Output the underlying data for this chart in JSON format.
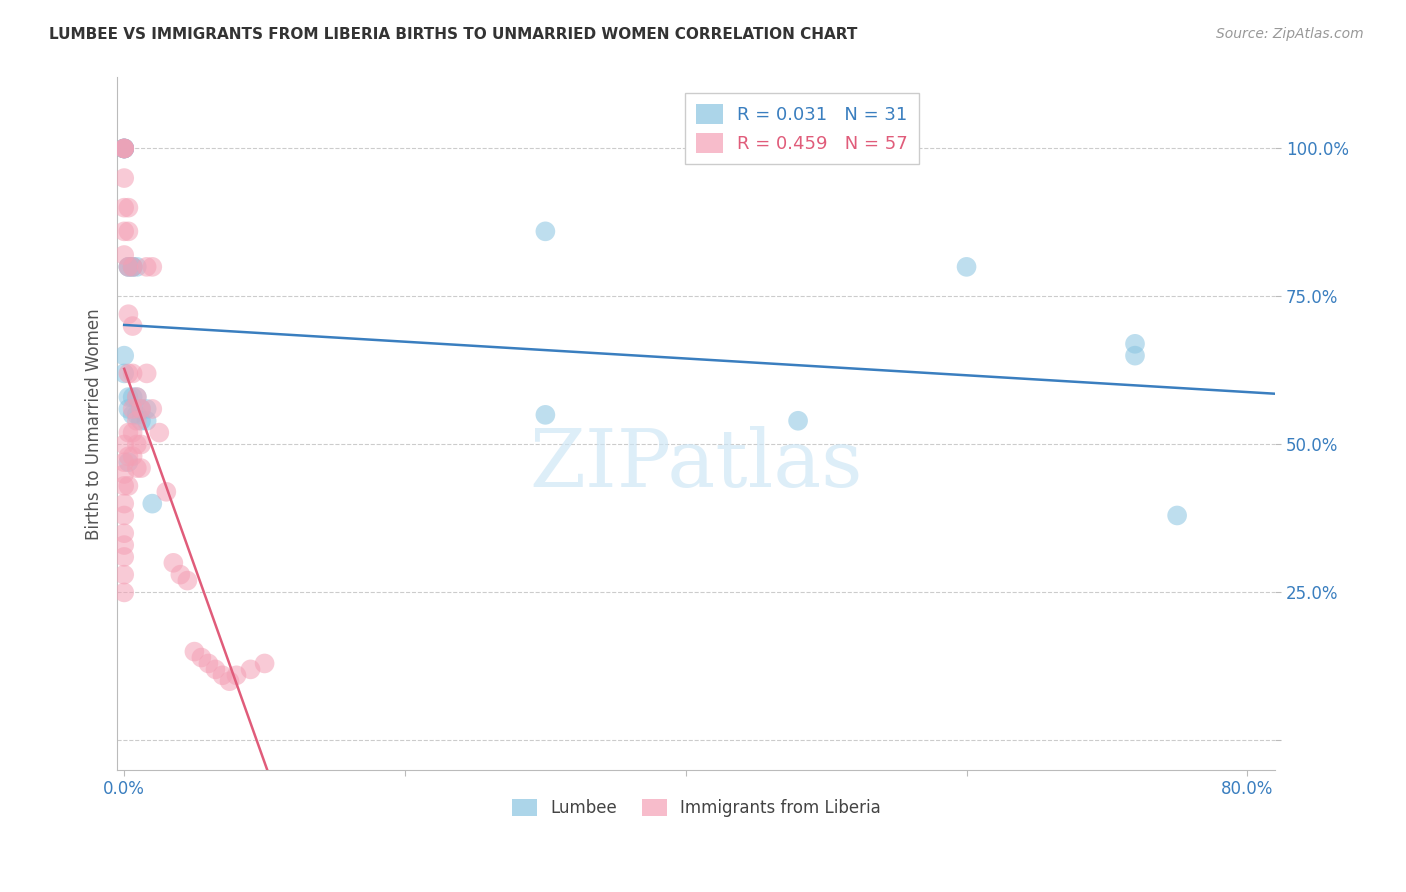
{
  "title": "LUMBEE VS IMMIGRANTS FROM LIBERIA BIRTHS TO UNMARRIED WOMEN CORRELATION CHART",
  "source": "Source: ZipAtlas.com",
  "ylabel": "Births to Unmarried Women",
  "watermark": "ZIPatlas",
  "blue_color": "#89c4e1",
  "pink_color": "#f4a0b5",
  "blue_line_color": "#3a7ebf",
  "pink_line_color": "#e05c7a",
  "background_color": "#ffffff",
  "grid_color": "#cccccc",
  "lumbee_x": [
    0.0,
    0.0,
    0.0,
    0.0,
    0.0,
    0.0,
    0.003,
    0.003,
    0.003,
    0.003,
    0.006,
    0.006,
    0.006,
    0.006,
    0.009,
    0.009,
    0.009,
    0.012,
    0.012,
    0.016,
    0.016,
    0.02,
    0.3,
    0.3,
    0.48,
    0.6,
    0.72,
    0.72,
    0.75,
    0.0,
    0.003
  ],
  "lumbee_y": [
    1.0,
    1.0,
    1.0,
    1.0,
    1.0,
    0.65,
    0.8,
    0.8,
    0.58,
    0.56,
    0.8,
    0.8,
    0.58,
    0.55,
    0.8,
    0.58,
    0.55,
    0.56,
    0.54,
    0.56,
    0.54,
    0.4,
    0.55,
    0.86,
    0.54,
    0.8,
    0.67,
    0.65,
    0.38,
    0.62,
    0.47
  ],
  "liberia_x": [
    0.0,
    0.0,
    0.0,
    0.0,
    0.0,
    0.0,
    0.0,
    0.0,
    0.0,
    0.0,
    0.0,
    0.0,
    0.0,
    0.0,
    0.0,
    0.0,
    0.0,
    0.0,
    0.003,
    0.003,
    0.003,
    0.003,
    0.003,
    0.003,
    0.003,
    0.003,
    0.006,
    0.006,
    0.006,
    0.006,
    0.006,
    0.006,
    0.009,
    0.009,
    0.009,
    0.009,
    0.012,
    0.012,
    0.012,
    0.016,
    0.016,
    0.02,
    0.02,
    0.025,
    0.03,
    0.035,
    0.04,
    0.045,
    0.05,
    0.055,
    0.06,
    0.065,
    0.07,
    0.075,
    0.08,
    0.09,
    0.1
  ],
  "liberia_y": [
    1.0,
    1.0,
    1.0,
    0.95,
    0.9,
    0.86,
    0.82,
    0.5,
    0.47,
    0.45,
    0.43,
    0.4,
    0.38,
    0.35,
    0.33,
    0.31,
    0.28,
    0.25,
    0.9,
    0.86,
    0.8,
    0.72,
    0.62,
    0.52,
    0.48,
    0.43,
    0.8,
    0.7,
    0.62,
    0.56,
    0.52,
    0.48,
    0.58,
    0.54,
    0.5,
    0.46,
    0.56,
    0.5,
    0.46,
    0.8,
    0.62,
    0.8,
    0.56,
    0.52,
    0.42,
    0.3,
    0.28,
    0.27,
    0.15,
    0.14,
    0.13,
    0.12,
    0.11,
    0.1,
    0.11,
    0.12,
    0.13
  ],
  "x_min": -0.005,
  "x_max": 0.82,
  "y_min": -0.05,
  "y_max": 1.12,
  "pink_line_x_end": 0.18
}
